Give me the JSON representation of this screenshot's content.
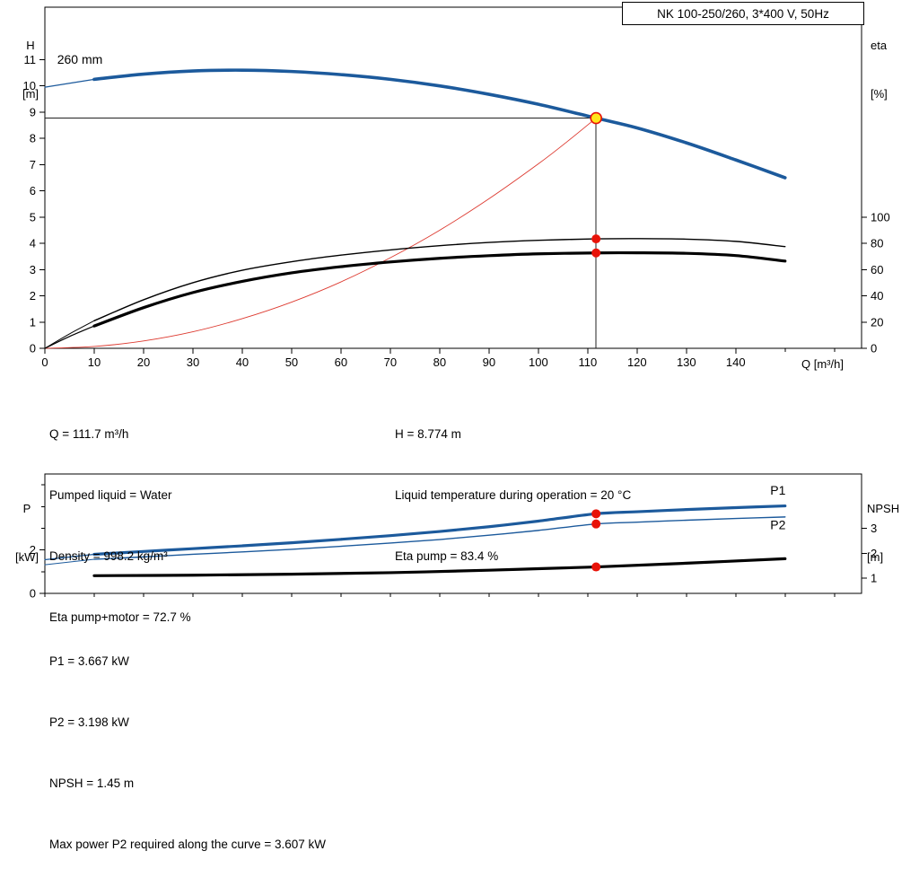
{
  "title_box": "NK 100-250/260, 3*400 V, 50Hz",
  "colors": {
    "curve_blue": "#1c5a9c",
    "system_red": "#dd3a30",
    "marker_red": "#e81309",
    "duty_yellow": "#ffe619",
    "axis_black": "#000000"
  },
  "axis_labels": {
    "hq_left_line1": "H",
    "hq_left_line2": "[m]",
    "hq_right_line1": "eta",
    "hq_right_line2": "[%]",
    "hq_x": "Q [m³/h]",
    "power_left_line1": "P",
    "power_left_line2": "[kW]",
    "power_right_line1": "NPSH",
    "power_right_line2": "[m]"
  },
  "duty_point": {
    "q_m3h": 111.7,
    "h_m": 8.774,
    "eta_pump_pct": 83.4,
    "eta_pump_motor_pct": 72.7,
    "p1_kw": 3.667,
    "p2_kw": 3.198,
    "npsh_m": 1.45,
    "max_p2_kw": 3.607
  },
  "annotations": {
    "mid_left": [
      "Q = 111.7 m³/h",
      "Pumped liquid = Water",
      "Density = 998.2 kg/m³",
      "Eta pump+motor = 72.7 %"
    ],
    "mid_right": [
      "H = 8.774 m",
      "Liquid temperature during operation = 20 °C",
      "Eta pump = 83.4 %"
    ],
    "bottom": [
      "P1 = 3.667 kW",
      "P2 = 3.198 kW",
      "NPSH = 1.45 m",
      "Max power P2 required along the curve = 3.607 kW"
    ]
  },
  "chart_data": [
    {
      "id": "hq",
      "type": "line",
      "title": "NK 100-250/260, 3*400 V, 50Hz",
      "xlabel": "Q [m³/h]",
      "ylabel_left": "H [m]",
      "ylabel_right": "eta [%]",
      "xlim": [
        0,
        165.5
      ],
      "ylim_left": [
        0,
        13
      ],
      "x_ticks": [
        0,
        10,
        20,
        30,
        40,
        50,
        60,
        70,
        80,
        90,
        100,
        110,
        120,
        130,
        140
      ],
      "x_ticks_minor": [
        150,
        160
      ],
      "y_ticks_left": [
        0,
        1,
        2,
        3,
        4,
        5,
        6,
        7,
        8,
        9,
        10,
        11
      ],
      "y_ticks_left_minor": [],
      "right_axis": {
        "scale": 0.05,
        "offset": 0,
        "ticks": [
          0,
          20,
          40,
          60,
          80,
          100
        ]
      },
      "series": [
        {
          "name": "pump-curve-lead",
          "axis": "left",
          "color": "#1c5a9c",
          "width": 1.2,
          "points": [
            [
              0,
              9.95
            ],
            [
              5,
              10.1
            ],
            [
              10,
              10.25
            ]
          ]
        },
        {
          "name": "pump-curve-260mm",
          "axis": "left",
          "color": "#1c5a9c",
          "width": 3.6,
          "points": [
            [
              10,
              10.25
            ],
            [
              20,
              10.45
            ],
            [
              30,
              10.57
            ],
            [
              40,
              10.6
            ],
            [
              50,
              10.55
            ],
            [
              60,
              10.43
            ],
            [
              70,
              10.25
            ],
            [
              80,
              10.0
            ],
            [
              90,
              9.68
            ],
            [
              100,
              9.3
            ],
            [
              111.7,
              8.774
            ],
            [
              120,
              8.4
            ],
            [
              130,
              7.83
            ],
            [
              140,
              7.18
            ],
            [
              150,
              6.5
            ]
          ]
        },
        {
          "name": "system-curve",
          "axis": "left",
          "color": "#dd3a30",
          "width": 0.9,
          "points": [
            [
              0,
              0
            ],
            [
              10,
              0.07
            ],
            [
              20,
              0.28
            ],
            [
              30,
              0.63
            ],
            [
              40,
              1.13
            ],
            [
              50,
              1.76
            ],
            [
              60,
              2.53
            ],
            [
              70,
              3.45
            ],
            [
              80,
              4.5
            ],
            [
              90,
              5.7
            ],
            [
              100,
              7.03
            ],
            [
              106,
              7.9
            ],
            [
              111.7,
              8.774
            ]
          ]
        },
        {
          "name": "eta-pump-lead",
          "axis": "right",
          "color": "#000000",
          "width": 1,
          "points": [
            [
              0,
              0
            ],
            [
              5,
              11
            ],
            [
              10,
              21
            ]
          ]
        },
        {
          "name": "eta-pump-motor-lead",
          "axis": "right",
          "color": "#000000",
          "width": 1.2,
          "points": [
            [
              0,
              0
            ],
            [
              5,
              9
            ],
            [
              10,
              17
            ]
          ]
        },
        {
          "name": "eta-pump-curve",
          "axis": "right",
          "color": "#000000",
          "width": 1.4,
          "points": [
            [
              10,
              21
            ],
            [
              20,
              37
            ],
            [
              30,
              50
            ],
            [
              40,
              59.5
            ],
            [
              50,
              66
            ],
            [
              60,
              71
            ],
            [
              70,
              75
            ],
            [
              80,
              78.2
            ],
            [
              90,
              80.7
            ],
            [
              100,
              82.3
            ],
            [
              111.7,
              83.4
            ],
            [
              120,
              83.6
            ],
            [
              130,
              83.2
            ],
            [
              140,
              81.5
            ],
            [
              150,
              77.5
            ]
          ]
        },
        {
          "name": "eta-pump-motor-curve",
          "axis": "right",
          "color": "#000000",
          "width": 3.2,
          "points": [
            [
              10,
              17
            ],
            [
              20,
              31
            ],
            [
              30,
              42.5
            ],
            [
              40,
              51
            ],
            [
              50,
              57.5
            ],
            [
              60,
              62.2
            ],
            [
              70,
              65.8
            ],
            [
              80,
              68.6
            ],
            [
              90,
              70.6
            ],
            [
              100,
              72
            ],
            [
              111.7,
              72.7
            ],
            [
              120,
              72.8
            ],
            [
              130,
              72.4
            ],
            [
              140,
              70.7
            ],
            [
              150,
              66.5
            ]
          ]
        }
      ],
      "ref_lines": [
        {
          "type": "h",
          "y": 8.774,
          "from_x": 0,
          "to_x": 111.7
        },
        {
          "type": "v",
          "x": 111.7,
          "from_y": 0,
          "to_y": 8.774
        }
      ],
      "markers": [
        {
          "name": "duty-point",
          "axis": "left",
          "x": 111.7,
          "y": 8.774,
          "r": 6,
          "fill": "#ffe619",
          "stroke": "#e81309",
          "interactable": true
        },
        {
          "name": "eta-pump-point",
          "axis": "right",
          "x": 111.7,
          "y": 83.4,
          "r": 5,
          "fill": "#e81309"
        },
        {
          "name": "eta-pump-motor-point",
          "axis": "right",
          "x": 111.7,
          "y": 72.7,
          "r": 5,
          "fill": "#e81309"
        }
      ],
      "inline_labels": [
        {
          "text": "260 mm",
          "x": 2.5,
          "y": 10.85,
          "color": "#000000"
        }
      ]
    },
    {
      "id": "power",
      "type": "line",
      "title": "",
      "xlabel": "",
      "ylabel_left": "P [kW]",
      "ylabel_right": "NPSH [m]",
      "xlim": [
        0,
        165.5
      ],
      "ylim_left": [
        0,
        5.5
      ],
      "x_ticks": [],
      "x_ticks_minor": [
        0,
        10,
        20,
        30,
        40,
        50,
        60,
        70,
        80,
        90,
        100,
        110,
        120,
        130,
        140,
        150,
        160
      ],
      "y_ticks_left": [
        0,
        2
      ],
      "y_ticks_left_minor": [
        1,
        3,
        4,
        5
      ],
      "right_axis": {
        "scale": 1.15,
        "offset": -0.45,
        "ticks": [
          1,
          2,
          3
        ]
      },
      "series": [
        {
          "name": "p1-lead",
          "axis": "left",
          "color": "#1c5a9c",
          "width": 1.2,
          "points": [
            [
              0,
              1.55
            ],
            [
              10,
              1.8
            ]
          ]
        },
        {
          "name": "p1-curve",
          "axis": "left",
          "color": "#1c5a9c",
          "width": 3.2,
          "points": [
            [
              10,
              1.8
            ],
            [
              20,
              1.93
            ],
            [
              30,
              2.06
            ],
            [
              40,
              2.19
            ],
            [
              50,
              2.33
            ],
            [
              60,
              2.49
            ],
            [
              70,
              2.66
            ],
            [
              80,
              2.85
            ],
            [
              90,
              3.07
            ],
            [
              100,
              3.33
            ],
            [
              111.7,
              3.667
            ],
            [
              120,
              3.76
            ],
            [
              130,
              3.86
            ],
            [
              140,
              3.95
            ],
            [
              150,
              4.03
            ]
          ]
        },
        {
          "name": "p2-lead",
          "axis": "left",
          "color": "#1c5a9c",
          "width": 1,
          "points": [
            [
              0,
              1.32
            ],
            [
              10,
              1.57
            ]
          ]
        },
        {
          "name": "p2-curve",
          "axis": "left",
          "color": "#1c5a9c",
          "width": 1.4,
          "points": [
            [
              10,
              1.57
            ],
            [
              20,
              1.68
            ],
            [
              30,
              1.8
            ],
            [
              40,
              1.91
            ],
            [
              50,
              2.03
            ],
            [
              60,
              2.17
            ],
            [
              70,
              2.32
            ],
            [
              80,
              2.48
            ],
            [
              90,
              2.68
            ],
            [
              100,
              2.9
            ],
            [
              111.7,
              3.198
            ],
            [
              120,
              3.28
            ],
            [
              130,
              3.37
            ],
            [
              140,
              3.45
            ],
            [
              150,
              3.52
            ]
          ]
        },
        {
          "name": "npsh-curve",
          "axis": "right",
          "color": "#000000",
          "width": 3.2,
          "points": [
            [
              10,
              1.1
            ],
            [
              30,
              1.12
            ],
            [
              50,
              1.16
            ],
            [
              70,
              1.22
            ],
            [
              90,
              1.32
            ],
            [
              100,
              1.38
            ],
            [
              111.7,
              1.45
            ],
            [
              130,
              1.6
            ],
            [
              150,
              1.78
            ]
          ]
        }
      ],
      "ref_lines": [],
      "markers": [
        {
          "name": "p1-point",
          "axis": "left",
          "x": 111.7,
          "y": 3.667,
          "r": 5,
          "fill": "#e81309"
        },
        {
          "name": "p2-point",
          "axis": "left",
          "x": 111.7,
          "y": 3.198,
          "r": 5,
          "fill": "#e81309"
        },
        {
          "name": "npsh-point",
          "axis": "right",
          "x": 111.7,
          "y": 1.45,
          "r": 5,
          "fill": "#e81309"
        }
      ],
      "inline_labels": [
        {
          "text": "P1",
          "x": 147,
          "y": 4.55,
          "color": "#1c5a9c"
        },
        {
          "text": "P2",
          "x": 147,
          "y": 2.95,
          "color": "#1c5a9c"
        }
      ]
    }
  ]
}
